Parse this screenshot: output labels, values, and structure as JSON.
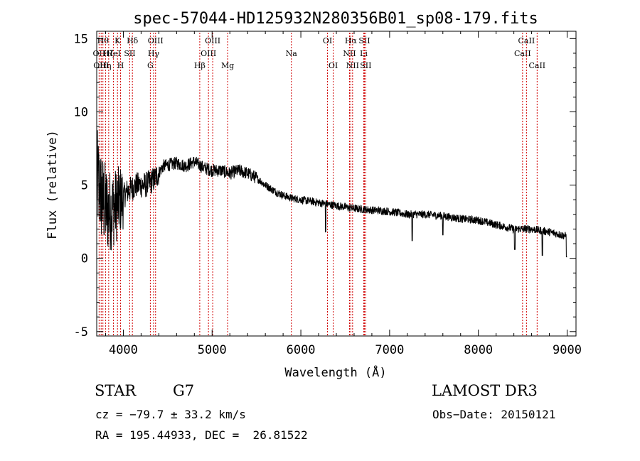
{
  "chart_data": {
    "type": "line",
    "title": "spec-57044-HD125932N280356B01_sp08-179.fits",
    "xlabel": "Wavelength (Å)",
    "ylabel": "Flux (relative)",
    "xlim": [
      3700,
      9100
    ],
    "ylim": [
      -5.3,
      15.5
    ],
    "xticks": [
      4000,
      5000,
      6000,
      7000,
      8000,
      9000
    ],
    "yticks": [
      -5,
      0,
      5,
      10,
      15
    ],
    "grid": false,
    "spectrum_anchors": [
      {
        "x": 3700,
        "y": 5.5
      },
      {
        "x": 3760,
        "y": 4.0
      },
      {
        "x": 3830,
        "y": 3.2
      },
      {
        "x": 3900,
        "y": 3.5
      },
      {
        "x": 3970,
        "y": 4.0
      },
      {
        "x": 4050,
        "y": 4.6
      },
      {
        "x": 4150,
        "y": 5.0
      },
      {
        "x": 4250,
        "y": 5.0
      },
      {
        "x": 4350,
        "y": 5.4
      },
      {
        "x": 4450,
        "y": 6.3
      },
      {
        "x": 4600,
        "y": 6.5
      },
      {
        "x": 4700,
        "y": 6.3
      },
      {
        "x": 4800,
        "y": 6.6
      },
      {
        "x": 4900,
        "y": 6.2
      },
      {
        "x": 5000,
        "y": 6.0
      },
      {
        "x": 5100,
        "y": 6.0
      },
      {
        "x": 5200,
        "y": 5.8
      },
      {
        "x": 5300,
        "y": 6.0
      },
      {
        "x": 5400,
        "y": 5.8
      },
      {
        "x": 5500,
        "y": 5.5
      },
      {
        "x": 5600,
        "y": 5.0
      },
      {
        "x": 5700,
        "y": 4.6
      },
      {
        "x": 5800,
        "y": 4.3
      },
      {
        "x": 5900,
        "y": 4.1
      },
      {
        "x": 6000,
        "y": 4.0
      },
      {
        "x": 6200,
        "y": 3.8
      },
      {
        "x": 6400,
        "y": 3.6
      },
      {
        "x": 6600,
        "y": 3.4
      },
      {
        "x": 6800,
        "y": 3.3
      },
      {
        "x": 7000,
        "y": 3.2
      },
      {
        "x": 7200,
        "y": 3.0
      },
      {
        "x": 7400,
        "y": 3.0
      },
      {
        "x": 7600,
        "y": 2.9
      },
      {
        "x": 7800,
        "y": 2.7
      },
      {
        "x": 8000,
        "y": 2.6
      },
      {
        "x": 8200,
        "y": 2.3
      },
      {
        "x": 8400,
        "y": 2.0
      },
      {
        "x": 8600,
        "y": 2.0
      },
      {
        "x": 8800,
        "y": 1.8
      },
      {
        "x": 9000,
        "y": 1.5
      }
    ],
    "absorption_dips": [
      {
        "x": 6280,
        "y": 1.8
      },
      {
        "x": 7255,
        "y": 1.2
      },
      {
        "x": 7600,
        "y": 1.6
      },
      {
        "x": 8410,
        "y": 0.6
      },
      {
        "x": 8720,
        "y": 0.2
      },
      {
        "x": 8995,
        "y": 0.1
      }
    ],
    "line_markers": [
      {
        "wavelength": 3727,
        "label": "OII",
        "row": 1
      },
      {
        "wavelength": 3750,
        "label": "OIII",
        "row": 2
      },
      {
        "wavelength": 3770,
        "label": "Hθ",
        "row": 0
      },
      {
        "wavelength": 3799,
        "label": "Hη",
        "row": 2
      },
      {
        "wavelength": 3835,
        "label": "Hζ",
        "row": 1
      },
      {
        "wavelength": 3889,
        "label": "HeI",
        "row": 1
      },
      {
        "wavelength": 3934,
        "label": "K",
        "row": 0
      },
      {
        "wavelength": 3969,
        "label": "H",
        "row": 2
      },
      {
        "wavelength": 4072,
        "label": "SII",
        "row": 1
      },
      {
        "wavelength": 4102,
        "label": "Hδ",
        "row": 0
      },
      {
        "wavelength": 4304,
        "label": "G",
        "row": 2
      },
      {
        "wavelength": 4341,
        "label": "Hγ",
        "row": 1
      },
      {
        "wavelength": 4363,
        "label": "OIII",
        "row": 0
      },
      {
        "wavelength": 4861,
        "label": "Hβ",
        "row": 2
      },
      {
        "wavelength": 4959,
        "label": "OIII",
        "row": 1
      },
      {
        "wavelength": 5007,
        "label": "OIII",
        "row": 0
      },
      {
        "wavelength": 5175,
        "label": "Mg",
        "row": 2
      },
      {
        "wavelength": 5893,
        "label": "Na",
        "row": 1
      },
      {
        "wavelength": 6300,
        "label": "OI",
        "row": 0
      },
      {
        "wavelength": 6364,
        "label": "OI",
        "row": 2
      },
      {
        "wavelength": 6548,
        "label": "NII",
        "row": 1
      },
      {
        "wavelength": 6563,
        "label": "Hα",
        "row": 0
      },
      {
        "wavelength": 6583,
        "label": "NII",
        "row": 2
      },
      {
        "wavelength": 6708,
        "label": "Li",
        "row": 1
      },
      {
        "wavelength": 6716,
        "label": "SII",
        "row": 0
      },
      {
        "wavelength": 6731,
        "label": "SII",
        "row": 2
      },
      {
        "wavelength": 8498,
        "label": "CaII",
        "row": 1
      },
      {
        "wavelength": 8542,
        "label": "CaII",
        "row": 0
      },
      {
        "wavelength": 8662,
        "label": "CaII",
        "row": 2
      }
    ]
  },
  "info": {
    "object_class": "STAR",
    "subclass": "G7",
    "survey": "LAMOST DR3",
    "redshift": "cz = −79.7 ± 33.2 km/s",
    "obs_date": "Obs−Date: 20150121",
    "coords": "RA = 195.44933, DEC =  26.81522"
  }
}
